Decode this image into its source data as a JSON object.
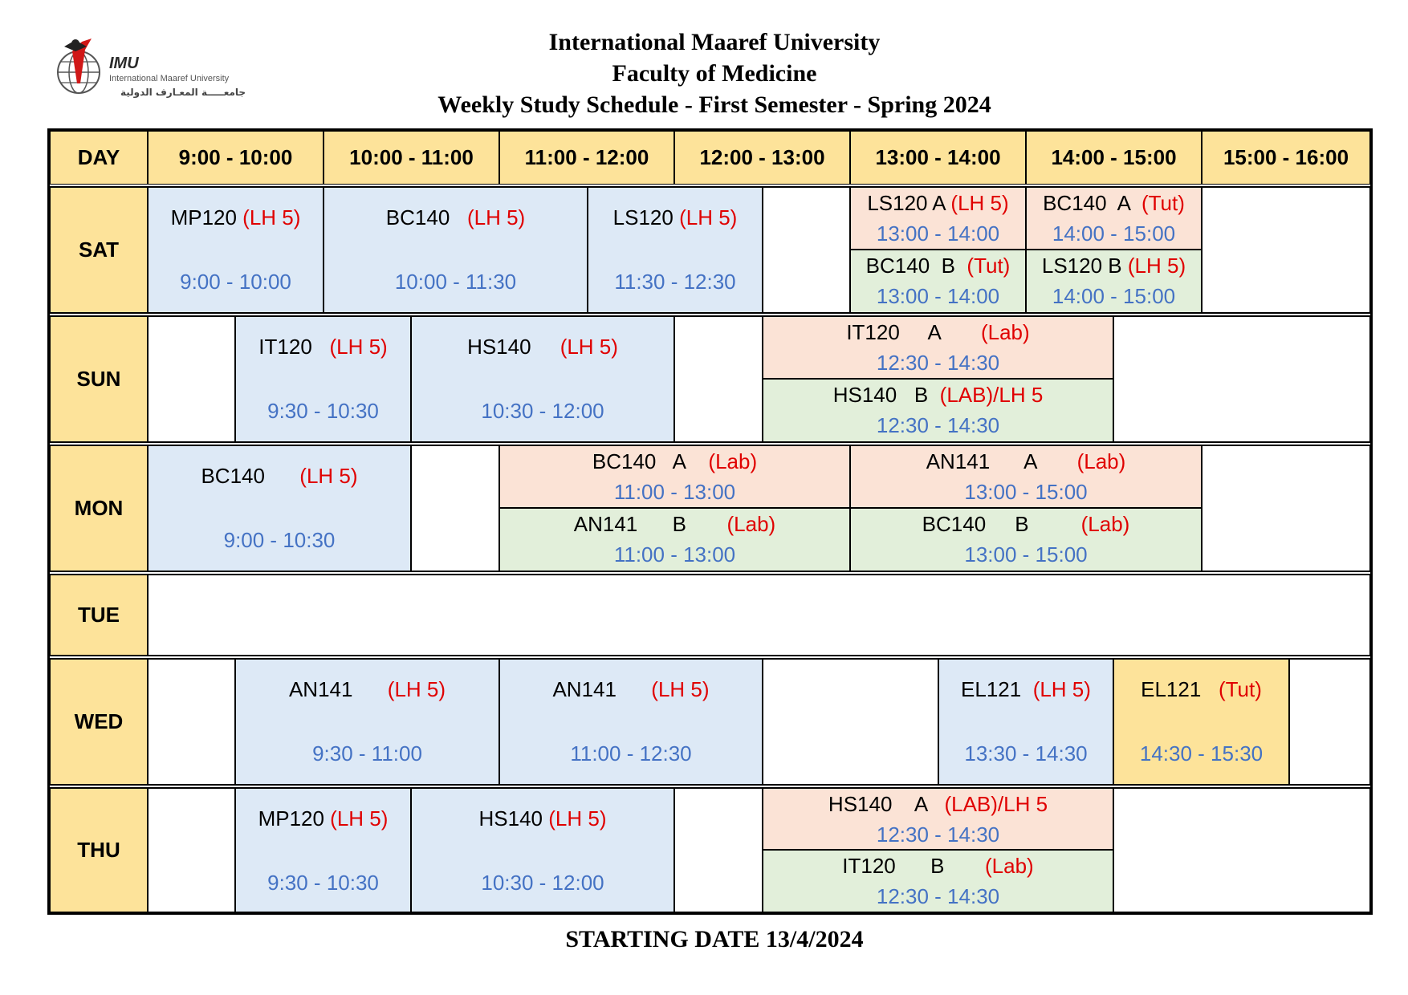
{
  "header": {
    "line1": "International Maaref University",
    "line2": "Faculty of Medicine",
    "line3": "Weekly Study Schedule - First Semester - Spring 2024"
  },
  "logo": {
    "abbr": "IMU",
    "english": "International Maaref University",
    "arabic": "جامعـــــة المعـارف الدولية"
  },
  "columns": [
    "DAY",
    "9:00 - 10:00",
    "10:00 - 11:00",
    "11:00 - 12:00",
    "12:00 - 13:00",
    "13:00 - 14:00",
    "14:00 - 15:00",
    "15:00 - 16:00"
  ],
  "days": [
    "SAT",
    "SUN",
    "MON",
    "TUE",
    "WED",
    "THU"
  ],
  "sessions": {
    "sat": [
      {
        "name": "MP120 ",
        "tag": "(LH 5)",
        "time": "9:00 - 10:00"
      },
      {
        "name": "BC140   ",
        "tag": "(LH 5)",
        "time": "10:00 - 11:30"
      },
      {
        "name": "LS120 ",
        "tag": "(LH 5)",
        "time": "11:30 - 12:30"
      },
      {
        "name": "LS120 A ",
        "tag": "(LH 5)",
        "time": "13:00 - 14:00"
      },
      {
        "name": "BC140  A  ",
        "tag": "(Tut)",
        "time": "14:00 - 15:00"
      },
      {
        "name": "BC140  B  ",
        "tag": "(Tut)",
        "time": "13:00 - 14:00"
      },
      {
        "name": "LS120 B ",
        "tag": "(LH 5)",
        "time": "14:00 - 15:00"
      }
    ],
    "sun": [
      {
        "name": "IT120   ",
        "tag": "(LH 5)",
        "time": "9:30 - 10:30"
      },
      {
        "name": "HS140     ",
        "tag": "(LH 5)",
        "time": "10:30 - 12:00"
      },
      {
        "name": "IT120     A       ",
        "tag": "(Lab)",
        "time": "12:30 - 14:30"
      },
      {
        "name": "HS140   B  ",
        "tag": "(LAB)/LH 5",
        "time": "12:30 - 14:30"
      }
    ],
    "mon": [
      {
        "name": "BC140      ",
        "tag": "(LH 5)",
        "time": "9:00 - 10:30"
      },
      {
        "name": "BC140   A    ",
        "tag": "(Lab)",
        "time": "11:00 - 13:00"
      },
      {
        "name": "AN141      A       ",
        "tag": "(Lab)",
        "time": "13:00 - 15:00"
      },
      {
        "name": "AN141      B       ",
        "tag": "(Lab)",
        "time": "11:00 - 13:00"
      },
      {
        "name": "BC140     B         ",
        "tag": "(Lab)",
        "time": "13:00 - 15:00"
      }
    ],
    "wed": [
      {
        "name": "AN141      ",
        "tag": "(LH 5)",
        "time": "9:30 - 11:00"
      },
      {
        "name": "AN141      ",
        "tag": "(LH 5)",
        "time": "11:00 - 12:30"
      },
      {
        "name": "EL121  ",
        "tag": "(LH 5)",
        "time": "13:30 - 14:30"
      },
      {
        "name": "EL121   ",
        "tag": "(Tut)",
        "time": "14:30 - 15:30"
      }
    ],
    "thu": [
      {
        "name": "MP120 ",
        "tag": "(LH 5)",
        "time": "9:30 - 10:30"
      },
      {
        "name": "HS140 ",
        "tag": "(LH 5)",
        "time": "10:30 - 12:00"
      },
      {
        "name": "HS140    A   ",
        "tag": "(LAB)/LH 5",
        "time": "12:30 - 14:30"
      },
      {
        "name": "IT120      B       ",
        "tag": "(Lab)",
        "time": "12:30 - 14:30"
      }
    ]
  },
  "footer": "STARTING DATE 13/4/2024",
  "colors": {
    "header_bg": "#fde39a",
    "lecture": "#dde9f6",
    "lab_a": "#fbe3d6",
    "lab_b": "#e2efda",
    "tut": "#fde39a",
    "tag_red": "#e00000",
    "time_blue": "#4472c4"
  }
}
